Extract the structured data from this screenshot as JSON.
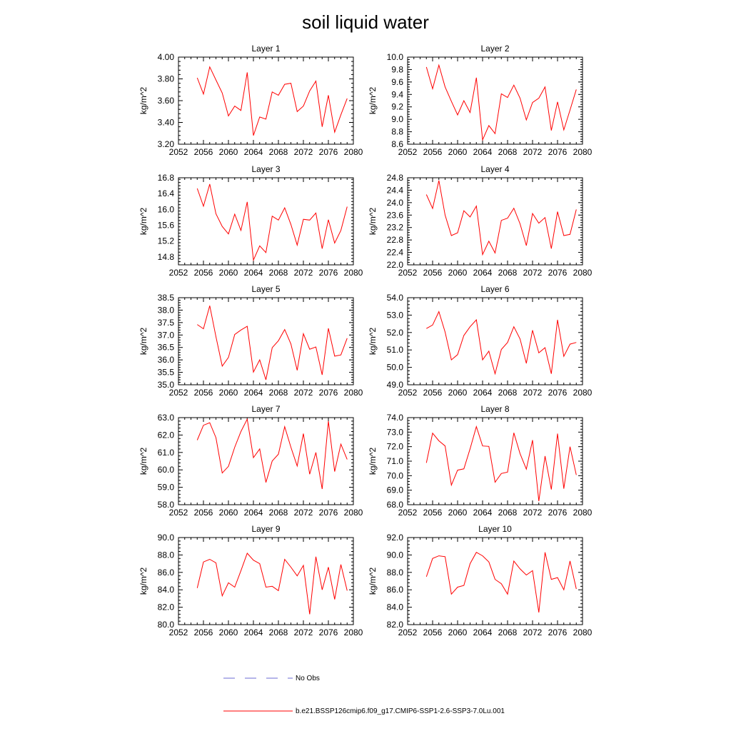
{
  "chart_data": {
    "type": "line",
    "title": "soil liquid water",
    "x_ticks": [
      "2052",
      "2056",
      "2060",
      "2064",
      "2068",
      "2072",
      "2076",
      "2080"
    ],
    "xlim": [
      2052,
      2080
    ],
    "x": [
      2055,
      2056,
      2057,
      2058,
      2059,
      2060,
      2061,
      2062,
      2063,
      2064,
      2065,
      2066,
      2067,
      2068,
      2069,
      2070,
      2071,
      2072,
      2073,
      2074,
      2075,
      2076,
      2077,
      2078,
      2079
    ],
    "series_name": "b.e21.BSSP126cmip6.f09_g17.CMIP6-SSP1-2.6-SSP3-7.0Lu.001",
    "series_color": "#ff0000",
    "obs_name": "No Obs",
    "obs_color": "#6b6bd6",
    "panels": [
      {
        "title": "Layer 1",
        "ylabel": "kg/m^2",
        "ylim": [
          3.2,
          4.0
        ],
        "y_ticks": [
          "3.20",
          "3.40",
          "3.60",
          "3.80",
          "4.00"
        ],
        "values": [
          3.81,
          3.66,
          3.91,
          3.79,
          3.67,
          3.46,
          3.55,
          3.51,
          3.86,
          3.28,
          3.45,
          3.43,
          3.68,
          3.65,
          3.75,
          3.76,
          3.5,
          3.55,
          3.69,
          3.78,
          3.36,
          3.65,
          3.31,
          3.47,
          3.62
        ]
      },
      {
        "title": "Layer 2",
        "ylabel": "kg/m^2",
        "ylim": [
          8.6,
          10.0
        ],
        "y_ticks": [
          "8.6",
          "8.8",
          "9.0",
          "9.2",
          "9.4",
          "9.6",
          "9.8",
          "10.0"
        ],
        "values": [
          9.84,
          9.49,
          9.87,
          9.52,
          9.29,
          9.07,
          9.3,
          9.11,
          9.67,
          8.67,
          8.9,
          8.77,
          9.41,
          9.35,
          9.55,
          9.34,
          8.99,
          9.27,
          9.34,
          9.52,
          8.82,
          9.28,
          8.83,
          9.15,
          9.48
        ]
      },
      {
        "title": "Layer 3",
        "ylabel": "kg/m^2",
        "ylim": [
          14.6,
          16.8
        ],
        "y_ticks": [
          "14.8",
          "15.2",
          "15.6",
          "16.0",
          "16.4",
          "16.8"
        ],
        "values": [
          16.53,
          16.08,
          16.64,
          15.89,
          15.57,
          15.38,
          15.88,
          15.47,
          16.19,
          14.72,
          15.08,
          14.91,
          15.83,
          15.73,
          16.04,
          15.62,
          15.1,
          15.75,
          15.73,
          15.91,
          15.01,
          15.74,
          15.15,
          15.47,
          16.07
        ]
      },
      {
        "title": "Layer 4",
        "ylabel": "kg/m^2",
        "ylim": [
          22.0,
          24.8
        ],
        "y_ticks": [
          "22.0",
          "22.4",
          "22.8",
          "23.2",
          "23.6",
          "24.0",
          "24.4",
          "24.8"
        ],
        "values": [
          24.26,
          23.81,
          24.71,
          23.6,
          22.94,
          23.03,
          23.74,
          23.54,
          23.89,
          22.33,
          22.76,
          22.38,
          23.43,
          23.5,
          23.82,
          23.32,
          22.62,
          23.65,
          23.34,
          23.52,
          22.52,
          23.71,
          22.94,
          22.98,
          23.78
        ]
      },
      {
        "title": "Layer 5",
        "ylabel": "kg/m^2",
        "ylim": [
          35.0,
          38.5
        ],
        "y_ticks": [
          "35.0",
          "35.5",
          "36.0",
          "36.5",
          "37.0",
          "37.5",
          "38.0",
          "38.5"
        ],
        "values": [
          37.42,
          37.25,
          38.18,
          36.93,
          35.75,
          36.1,
          37.02,
          37.2,
          37.35,
          35.51,
          36.0,
          35.2,
          36.49,
          36.77,
          37.22,
          36.64,
          35.58,
          37.05,
          36.43,
          36.52,
          35.4,
          37.27,
          36.15,
          36.2,
          36.87
        ]
      },
      {
        "title": "Layer 6",
        "ylabel": "kg/m^2",
        "ylim": [
          49.0,
          54.0
        ],
        "y_ticks": [
          "49.0",
          "50.0",
          "51.0",
          "52.0",
          "53.0",
          "54.0"
        ],
        "values": [
          52.23,
          52.43,
          53.2,
          52.03,
          50.43,
          50.73,
          51.83,
          52.33,
          52.73,
          50.43,
          50.93,
          49.63,
          51.03,
          51.43,
          52.33,
          51.63,
          50.23,
          52.13,
          50.83,
          51.13,
          49.63,
          52.73,
          50.63,
          51.33,
          51.43
        ]
      },
      {
        "title": "Layer 7",
        "ylabel": "kg/m^2",
        "ylim": [
          58.0,
          63.0
        ],
        "y_ticks": [
          "58.0",
          "59.0",
          "60.0",
          "61.0",
          "62.0",
          "63.0"
        ],
        "values": [
          61.71,
          62.56,
          62.71,
          61.85,
          59.82,
          60.2,
          61.3,
          62.2,
          62.91,
          60.7,
          61.2,
          59.28,
          60.51,
          60.9,
          62.48,
          61.3,
          60.22,
          62.08,
          59.75,
          61.0,
          58.9,
          62.8,
          59.9,
          61.48,
          60.6
        ]
      },
      {
        "title": "Layer 8",
        "ylabel": "kg/m^2",
        "ylim": [
          68.0,
          74.0
        ],
        "y_ticks": [
          "68.0",
          "69.0",
          "70.0",
          "71.0",
          "72.0",
          "73.0",
          "74.0"
        ],
        "values": [
          70.88,
          72.93,
          72.4,
          72.05,
          69.35,
          70.38,
          70.47,
          71.85,
          73.38,
          72.05,
          72.02,
          69.55,
          70.15,
          70.25,
          72.95,
          71.52,
          70.45,
          72.45,
          68.24,
          71.35,
          69.05,
          72.9,
          69.1,
          72.0,
          70.05
        ]
      },
      {
        "title": "Layer 9",
        "ylabel": "kg/m^2",
        "ylim": [
          80.0,
          90.0
        ],
        "y_ticks": [
          "80.0",
          "82.0",
          "84.0",
          "86.0",
          "88.0",
          "90.0"
        ],
        "values": [
          84.2,
          87.2,
          87.5,
          87.1,
          83.3,
          84.8,
          84.3,
          86.2,
          88.2,
          87.4,
          87.0,
          84.3,
          84.4,
          83.9,
          87.5,
          86.6,
          85.6,
          86.8,
          81.2,
          87.8,
          84.0,
          86.6,
          82.9,
          86.9,
          83.9
        ]
      },
      {
        "title": "Layer 10",
        "ylabel": "kg/m^2",
        "ylim": [
          82.0,
          92.0
        ],
        "y_ticks": [
          "82.0",
          "84.0",
          "86.0",
          "88.0",
          "90.0",
          "92.0"
        ],
        "values": [
          87.5,
          89.6,
          89.9,
          89.8,
          85.5,
          86.3,
          86.5,
          89.0,
          90.3,
          89.9,
          89.2,
          87.2,
          86.7,
          85.5,
          89.3,
          88.4,
          87.7,
          88.2,
          83.4,
          90.3,
          87.2,
          87.4,
          86.0,
          89.3,
          86.1
        ]
      }
    ]
  }
}
